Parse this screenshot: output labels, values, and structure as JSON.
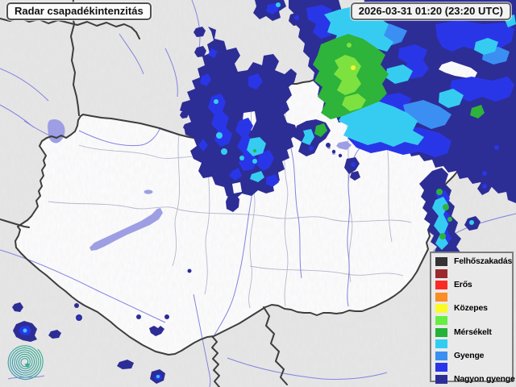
{
  "header": {
    "title": "Radar csapadékintenzitás",
    "timestamp": "2026-03-31 01:20 (23:20 UTC)"
  },
  "legend": {
    "items": [
      {
        "label": "Felhőszakadás",
        "color": "#333333"
      },
      {
        "label": "",
        "color": "#9a2a2e"
      },
      {
        "label": "Erős",
        "color": "#fa2b25"
      },
      {
        "label": "",
        "color": "#fa8d24"
      },
      {
        "label": "Közepes",
        "color": "#fafa28"
      },
      {
        "label": "",
        "color": "#66ee41"
      },
      {
        "label": "Mérsékelt",
        "color": "#24b237"
      },
      {
        "label": "",
        "color": "#30cdf2"
      },
      {
        "label": "Gyenge",
        "color": "#3b8ff2"
      },
      {
        "label": "",
        "color": "#2936e8"
      },
      {
        "label": "Nagyon gyenge",
        "color": "#2d2d96"
      }
    ]
  },
  "map": {
    "region": "Hungary",
    "intensity_colors": {
      "nagyon_gyenge": "#2d2d96",
      "gyenge_2": "#2936e8",
      "gyenge": "#3b8ff2",
      "cyan": "#36ccf2",
      "mersekelt": "#2eb33b",
      "mersekelt_light": "#7de23f",
      "kozepes": "#f4f437",
      "water": "#9e9ee4",
      "border": "#3d3d3d",
      "terrain": "#e7e7e7",
      "country_fill": "#fdfdfe"
    }
  }
}
